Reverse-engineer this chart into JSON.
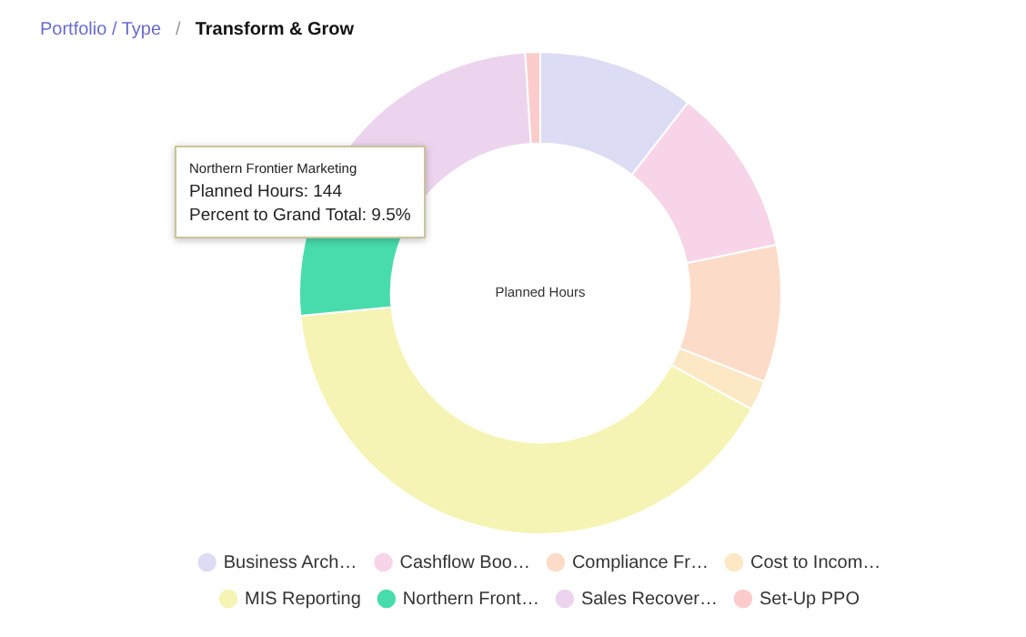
{
  "chart_data": {
    "type": "donut",
    "title": "Transform & Grow",
    "subtitle": "Portfolio / Type",
    "categories": [
      "Business Arch…",
      "Cashflow Boo…",
      "Compliance Fr…",
      "Cost to Incom…",
      "MIS Reporting",
      "Northern Front…",
      "Sales Recover…",
      "Set-Up PPO"
    ],
    "values": [
      10.5,
      11.3,
      9.2,
      2.0,
      40.5,
      9.5,
      16.0,
      1.0
    ],
    "colors": [
      "#dcdcf4",
      "#f8d4e8",
      "#fcdcc8",
      "#fce8c4",
      "#f6f4b4",
      "#48dcac",
      "#ecd4ee",
      "#fccccc"
    ],
    "legend": "bottom",
    "annotations": [
      "/",
      "Planned Hours",
      "Northern Frontier Marketing",
      "Planned Hours: 144",
      "Percent to Grand Total: 9.5%"
    ]
  }
}
